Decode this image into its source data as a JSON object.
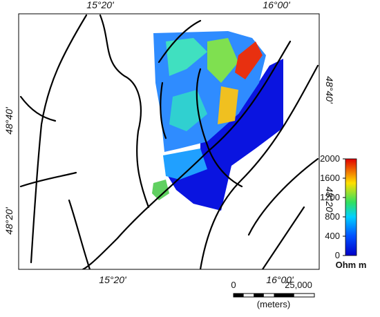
{
  "map": {
    "top_labels": [
      "15°20'",
      "16°00'"
    ],
    "bottom_labels": [
      "15°20'",
      "16°00'"
    ],
    "left_labels": [
      "48°40'",
      "48°20'"
    ],
    "right_labels": [
      "48°40'",
      "48°20'"
    ]
  },
  "colorbar": {
    "title": "Ohm m",
    "range": [
      0,
      2000
    ],
    "ticks": [
      0,
      400,
      800,
      1200,
      1600,
      2000
    ]
  },
  "scale_bar": {
    "labels": [
      "0",
      "25,000"
    ],
    "unit": "(meters)"
  }
}
